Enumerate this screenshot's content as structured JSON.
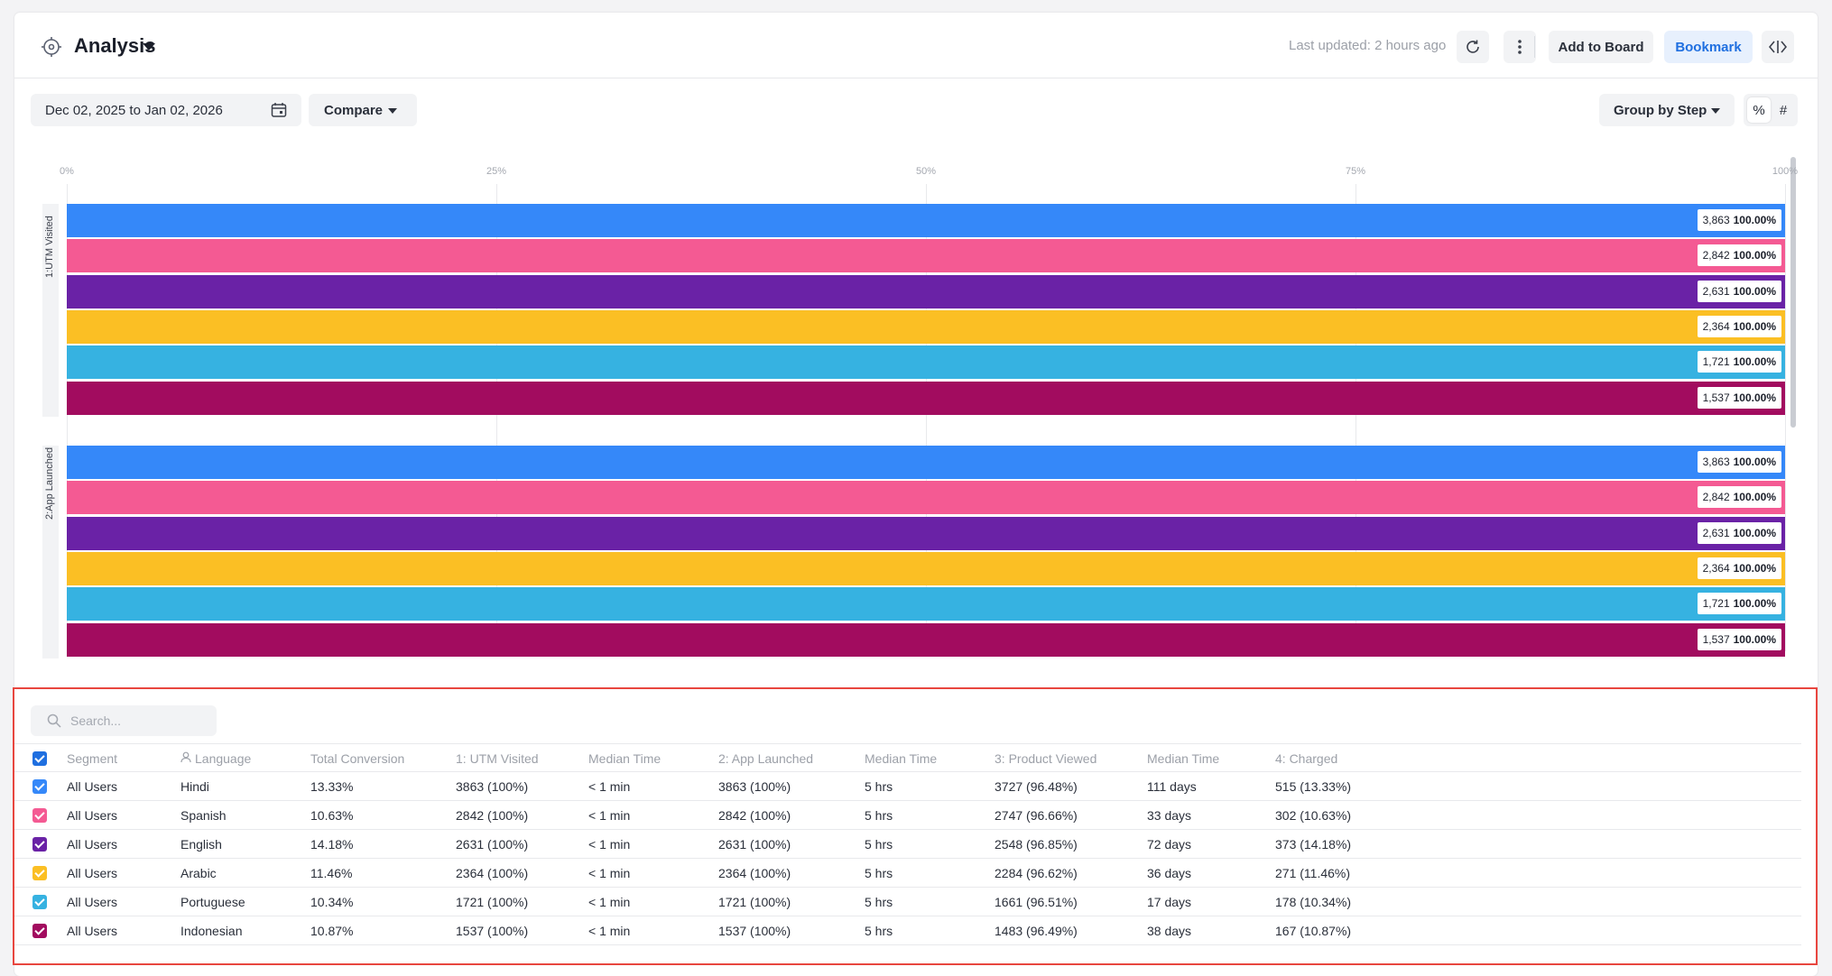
{
  "header": {
    "title": "Analysis",
    "last_updated": "Last updated: 2 hours ago",
    "add_to_board": "Add to Board",
    "bookmark": "Bookmark"
  },
  "toolbar": {
    "date_range": "Dec 02, 2025 to Jan 02, 2026",
    "compare": "Compare",
    "group_by": "Group by Step",
    "toggle_percent": "%",
    "toggle_count": "#",
    "selected_toggle": "%"
  },
  "colors": {
    "series": [
      "#3588f9",
      "#f45a93",
      "#6a22a6",
      "#fbbf24",
      "#36b2e1",
      "#a20c5f"
    ],
    "accent": "#1f6fe0",
    "highlight_border": "#e8463f"
  },
  "chart_data": {
    "type": "bar",
    "orientation": "horizontal",
    "x_ticks": [
      "0%",
      "25%",
      "50%",
      "75%",
      "100%"
    ],
    "xlim": [
      0,
      100
    ],
    "grid": true,
    "steps": [
      {
        "label": "1:UTM Visited",
        "bars": [
          {
            "count": "3,863",
            "percent": "100.00%",
            "value": 100
          },
          {
            "count": "2,842",
            "percent": "100.00%",
            "value": 100
          },
          {
            "count": "2,631",
            "percent": "100.00%",
            "value": 100
          },
          {
            "count": "2,364",
            "percent": "100.00%",
            "value": 100
          },
          {
            "count": "1,721",
            "percent": "100.00%",
            "value": 100
          },
          {
            "count": "1,537",
            "percent": "100.00%",
            "value": 100
          }
        ]
      },
      {
        "label": "2:App Launched",
        "bars": [
          {
            "count": "3,863",
            "percent": "100.00%",
            "value": 100
          },
          {
            "count": "2,842",
            "percent": "100.00%",
            "value": 100
          },
          {
            "count": "2,631",
            "percent": "100.00%",
            "value": 100
          },
          {
            "count": "2,364",
            "percent": "100.00%",
            "value": 100
          },
          {
            "count": "1,721",
            "percent": "100.00%",
            "value": 100
          },
          {
            "count": "1,537",
            "percent": "100.00%",
            "value": 100
          }
        ]
      }
    ]
  },
  "table": {
    "search_placeholder": "Search...",
    "headers": [
      "Segment",
      "Language",
      "Total Conversion",
      "1: UTM Visited",
      "Median Time",
      "2: App Launched",
      "Median Time",
      "3: Product Viewed",
      "Median Time",
      "4: Charged"
    ],
    "rows": [
      [
        "All Users",
        "Hindi",
        "13.33%",
        "3863 (100%)",
        "< 1 min",
        "3863 (100%)",
        "5 hrs",
        "3727 (96.48%)",
        "111 days",
        "515 (13.33%)"
      ],
      [
        "All Users",
        "Spanish",
        "10.63%",
        "2842 (100%)",
        "< 1 min",
        "2842 (100%)",
        "5 hrs",
        "2747 (96.66%)",
        "33 days",
        "302 (10.63%)"
      ],
      [
        "All Users",
        "English",
        "14.18%",
        "2631 (100%)",
        "< 1 min",
        "2631 (100%)",
        "5 hrs",
        "2548 (96.85%)",
        "72 days",
        "373 (14.18%)"
      ],
      [
        "All Users",
        "Arabic",
        "11.46%",
        "2364 (100%)",
        "< 1 min",
        "2364 (100%)",
        "5 hrs",
        "2284 (96.62%)",
        "36 days",
        "271 (11.46%)"
      ],
      [
        "All Users",
        "Portuguese",
        "10.34%",
        "1721 (100%)",
        "< 1 min",
        "1721 (100%)",
        "5 hrs",
        "1661 (96.51%)",
        "17 days",
        "178 (10.34%)"
      ],
      [
        "All Users",
        "Indonesian",
        "10.87%",
        "1537 (100%)",
        "< 1 min",
        "1537 (100%)",
        "5 hrs",
        "1483 (96.49%)",
        "38 days",
        "167 (10.87%)"
      ]
    ]
  }
}
